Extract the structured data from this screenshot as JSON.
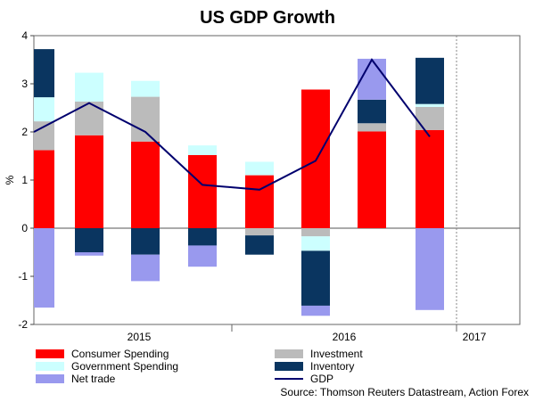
{
  "chart_data": {
    "type": "bar",
    "title": "US GDP Growth",
    "ylabel": "%",
    "ylim": [
      -2,
      4
    ],
    "yticks": [
      "4",
      "3",
      "2",
      "1",
      "0",
      "-1",
      "-2"
    ],
    "year_labels": [
      "2015",
      "2016",
      "2017"
    ],
    "source": "Source: Thomson Reuters Datastream, Action Forex",
    "colors": {
      "consumer": "#ff0000",
      "government": "#ccffff",
      "netTrade": "#9999ee",
      "investment": "#bbbbbb",
      "inventory": "#0a3560",
      "gdp": "#00006e"
    },
    "series": [
      {
        "key": "consumer",
        "name": "Consumer Spending",
        "values": [
          1.62,
          1.93,
          1.8,
          1.52,
          1.1,
          2.88,
          2.01,
          2.04
        ]
      },
      {
        "key": "investment",
        "name": "Investment",
        "values": [
          0.6,
          0.7,
          0.93,
          0.0,
          -0.15,
          -0.17,
          0.17,
          0.48
        ]
      },
      {
        "key": "government",
        "name": "Government Spending",
        "values": [
          0.5,
          0.6,
          0.33,
          0.2,
          0.28,
          -0.3,
          0.0,
          0.06
        ]
      },
      {
        "key": "inventory",
        "name": "Inventory",
        "values": [
          1.0,
          -0.5,
          -0.55,
          -0.36,
          -0.4,
          -1.14,
          0.49,
          0.96
        ]
      },
      {
        "key": "netTrade",
        "name": "Net trade",
        "values": [
          -1.65,
          -0.07,
          -0.55,
          -0.44,
          0.0,
          -0.21,
          0.85,
          -1.7
        ]
      },
      {
        "key": "gdp",
        "name": "GDP",
        "values": [
          2.0,
          2.6,
          2.0,
          0.9,
          0.8,
          1.4,
          3.5,
          1.9
        ]
      }
    ],
    "legend": [
      {
        "key": "consumer",
        "label": "Consumer Spending"
      },
      {
        "key": "investment",
        "label": "Investment"
      },
      {
        "key": "government",
        "label": "Government Spending"
      },
      {
        "key": "inventory",
        "label": "Inventory"
      },
      {
        "key": "netTrade",
        "label": "Net trade"
      },
      {
        "key": "gdp",
        "label": "GDP"
      }
    ],
    "grid": false,
    "legend_position": "bottom"
  }
}
